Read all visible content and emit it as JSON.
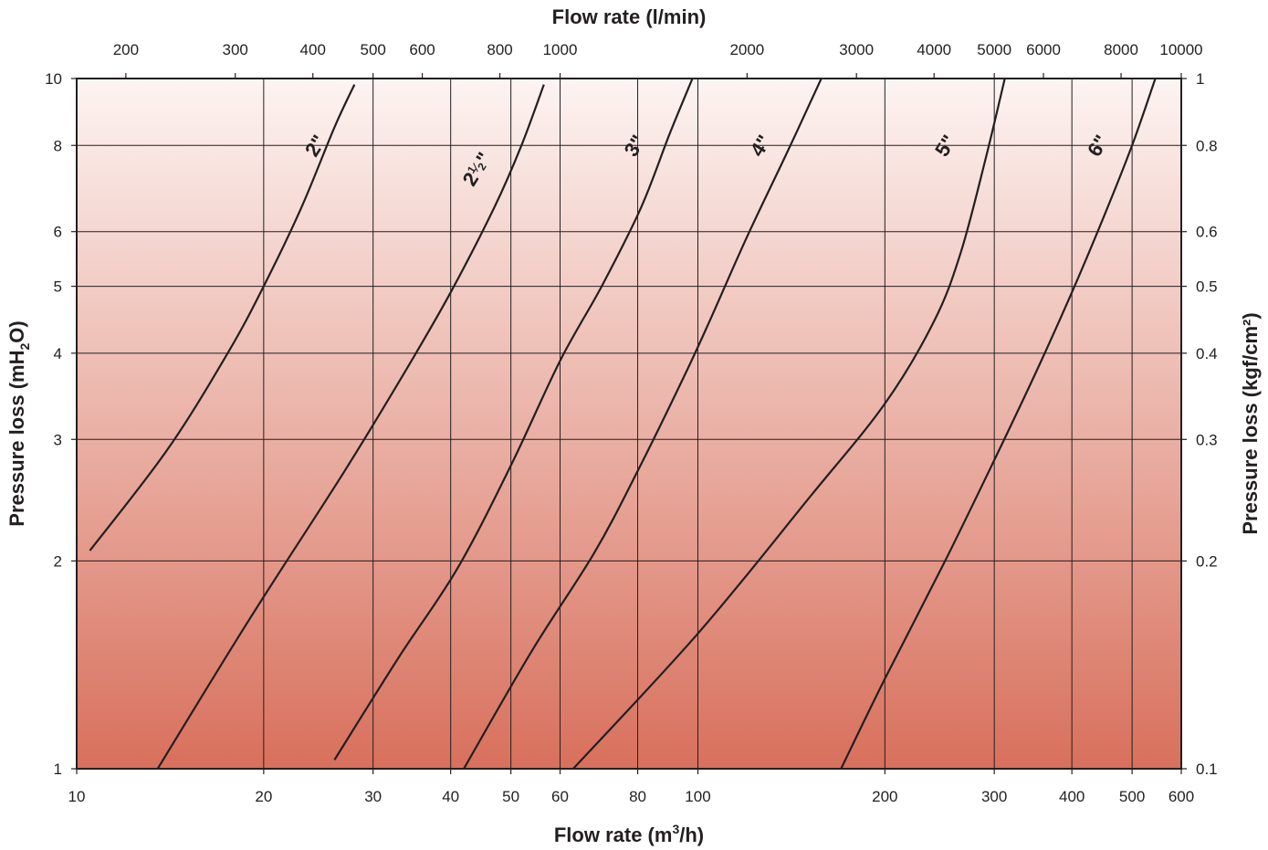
{
  "chart_data": {
    "type": "line",
    "title": "",
    "xlabel_bottom": {
      "text": "Flow rate (m",
      "sup": "3",
      "suffix": "/h)"
    },
    "xlabel_top": "Flow rate (l/min)",
    "ylabel_left": {
      "text": "Pressure loss (mH",
      "sub": "2",
      "suffix": "O)"
    },
    "ylabel_right": "Pressure loss (kgf/cm²)",
    "x_scale": "log",
    "y_scale": "log",
    "xlim": [
      10,
      600
    ],
    "ylim": [
      1,
      10
    ],
    "grid": true,
    "background_gradient": {
      "top": "#fdf4f2",
      "bottom": "#d8705c"
    },
    "line_color": "#231f20",
    "x_ticks_bottom": [
      {
        "value": 10,
        "label": "10"
      },
      {
        "value": 20,
        "label": "20"
      },
      {
        "value": 30,
        "label": "30"
      },
      {
        "value": 40,
        "label": "40"
      },
      {
        "value": 50,
        "label": "50"
      },
      {
        "value": 60,
        "label": "60"
      },
      {
        "value": 80,
        "label": "80"
      },
      {
        "value": 100,
        "label": "100"
      },
      {
        "value": 200,
        "label": "200"
      },
      {
        "value": 300,
        "label": "300"
      },
      {
        "value": 400,
        "label": "400"
      },
      {
        "value": 500,
        "label": "500"
      },
      {
        "value": 600,
        "label": "600"
      }
    ],
    "x_ticks_top": [
      {
        "value": 200,
        "label": "200"
      },
      {
        "value": 300,
        "label": "300"
      },
      {
        "value": 400,
        "label": "400"
      },
      {
        "value": 500,
        "label": "500"
      },
      {
        "value": 600,
        "label": "600"
      },
      {
        "value": 800,
        "label": "800"
      },
      {
        "value": 1000,
        "label": "1000"
      },
      {
        "value": 2000,
        "label": "2000"
      },
      {
        "value": 3000,
        "label": "3000"
      },
      {
        "value": 4000,
        "label": "4000"
      },
      {
        "value": 5000,
        "label": "5000"
      },
      {
        "value": 6000,
        "label": "6000"
      },
      {
        "value": 8000,
        "label": "8000"
      },
      {
        "value": 10000,
        "label": "10000"
      }
    ],
    "y_ticks_left": [
      {
        "value": 1,
        "label": "1"
      },
      {
        "value": 2,
        "label": "2"
      },
      {
        "value": 3,
        "label": "3"
      },
      {
        "value": 4,
        "label": "4"
      },
      {
        "value": 5,
        "label": "5"
      },
      {
        "value": 6,
        "label": "6"
      },
      {
        "value": 8,
        "label": "8"
      },
      {
        "value": 10,
        "label": "10"
      }
    ],
    "y_ticks_right": [
      {
        "value": 0.1,
        "label": "0.1"
      },
      {
        "value": 0.2,
        "label": "0.2"
      },
      {
        "value": 0.3,
        "label": "0.3"
      },
      {
        "value": 0.4,
        "label": "0.4"
      },
      {
        "value": 0.5,
        "label": "0.5"
      },
      {
        "value": 0.6,
        "label": "0.6"
      },
      {
        "value": 0.8,
        "label": "0.8"
      },
      {
        "value": 1,
        "label": "1"
      }
    ],
    "series": [
      {
        "name": "2\"",
        "label_main": "2\"",
        "label_at": [
          24.2,
          8.0
        ],
        "x": [
          10.5,
          14.0,
          17.5,
          20.0,
          23.0,
          26.0,
          28.0
        ],
        "y": [
          2.07,
          2.9,
          4.0,
          5.0,
          6.5,
          8.5,
          9.8
        ]
      },
      {
        "name": "2½\"",
        "label_main": "2",
        "label_frac": [
          "1",
          "2"
        ],
        "label_suffix": "\"",
        "label_at": [
          44.0,
          7.4
        ],
        "x": [
          13.5,
          19.0,
          27.0,
          34.0,
          40.0,
          47.0,
          52.0,
          56.5
        ],
        "y": [
          1.0,
          1.65,
          2.7,
          3.8,
          4.9,
          6.5,
          8.0,
          9.8
        ]
      },
      {
        "name": "3\"",
        "label_main": "3\"",
        "label_at": [
          79.0,
          8.0
        ],
        "x": [
          26.0,
          33.0,
          41.0,
          50.0,
          60.0,
          70.0,
          81.0,
          90.0,
          98.0
        ],
        "y": [
          1.03,
          1.45,
          1.95,
          2.75,
          3.9,
          5.0,
          6.5,
          8.3,
          10.0
        ]
      },
      {
        "name": "4\"",
        "label_main": "4\"",
        "label_at": [
          126.0,
          8.0
        ],
        "x": [
          42.0,
          54.0,
          68.0,
          80.0,
          95.0,
          105.0,
          120.0,
          140.0,
          158.0
        ],
        "y": [
          1.0,
          1.48,
          2.05,
          2.7,
          3.7,
          4.5,
          5.9,
          7.9,
          10.0
        ]
      },
      {
        "name": "5\"",
        "label_main": "5\"",
        "label_at": [
          250.0,
          8.0
        ],
        "x": [
          63.0,
          100.0,
          150.0,
          200.0,
          240.0,
          265.0,
          290.0,
          312.0
        ],
        "y": [
          1.0,
          1.57,
          2.45,
          3.38,
          4.45,
          5.6,
          7.6,
          10.0
        ]
      },
      {
        "name": "6\"",
        "label_main": "6\"",
        "label_at": [
          440.0,
          8.0
        ],
        "x": [
          170.0,
          200.0,
          250.0,
          300.0,
          350.0,
          400.0,
          450.0,
          500.0,
          545.0
        ],
        "y": [
          1.0,
          1.35,
          2.0,
          2.8,
          3.75,
          4.9,
          6.3,
          8.0,
          10.0
        ]
      }
    ]
  }
}
